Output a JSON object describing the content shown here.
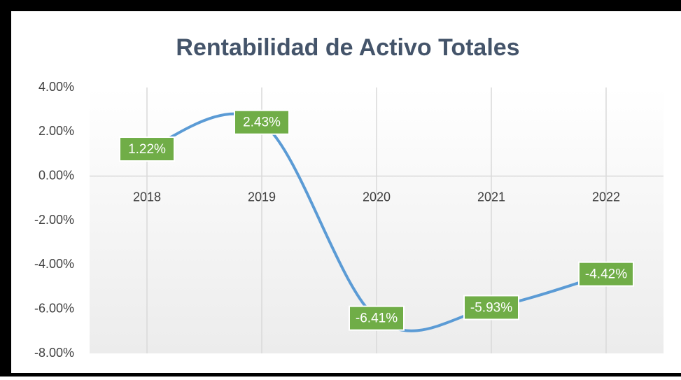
{
  "chart_data": {
    "type": "line",
    "title": "Rentabilidad de Activo Totales",
    "categories": [
      "2018",
      "2019",
      "2020",
      "2021",
      "2022"
    ],
    "series": [
      {
        "name": "Rentabilidad",
        "color": "#5b9bd5",
        "values": [
          1.22,
          2.43,
          -6.41,
          -5.93,
          -4.42
        ],
        "value_labels": [
          "1.22%",
          "2.43%",
          "-6.41%",
          "-5.93%",
          "-4.42%"
        ]
      }
    ],
    "ylim": [
      -8,
      4
    ],
    "yticks": [
      {
        "value": 4,
        "label": "4.00%"
      },
      {
        "value": 2,
        "label": "2.00%"
      },
      {
        "value": 0,
        "label": "0.00%"
      },
      {
        "value": -2,
        "label": "-2.00%"
      },
      {
        "value": -4,
        "label": "-4.00%"
      },
      {
        "value": -6,
        "label": "-6.00%"
      },
      {
        "value": -8,
        "label": "-8.00%"
      }
    ],
    "label_color": "#70ad47"
  }
}
